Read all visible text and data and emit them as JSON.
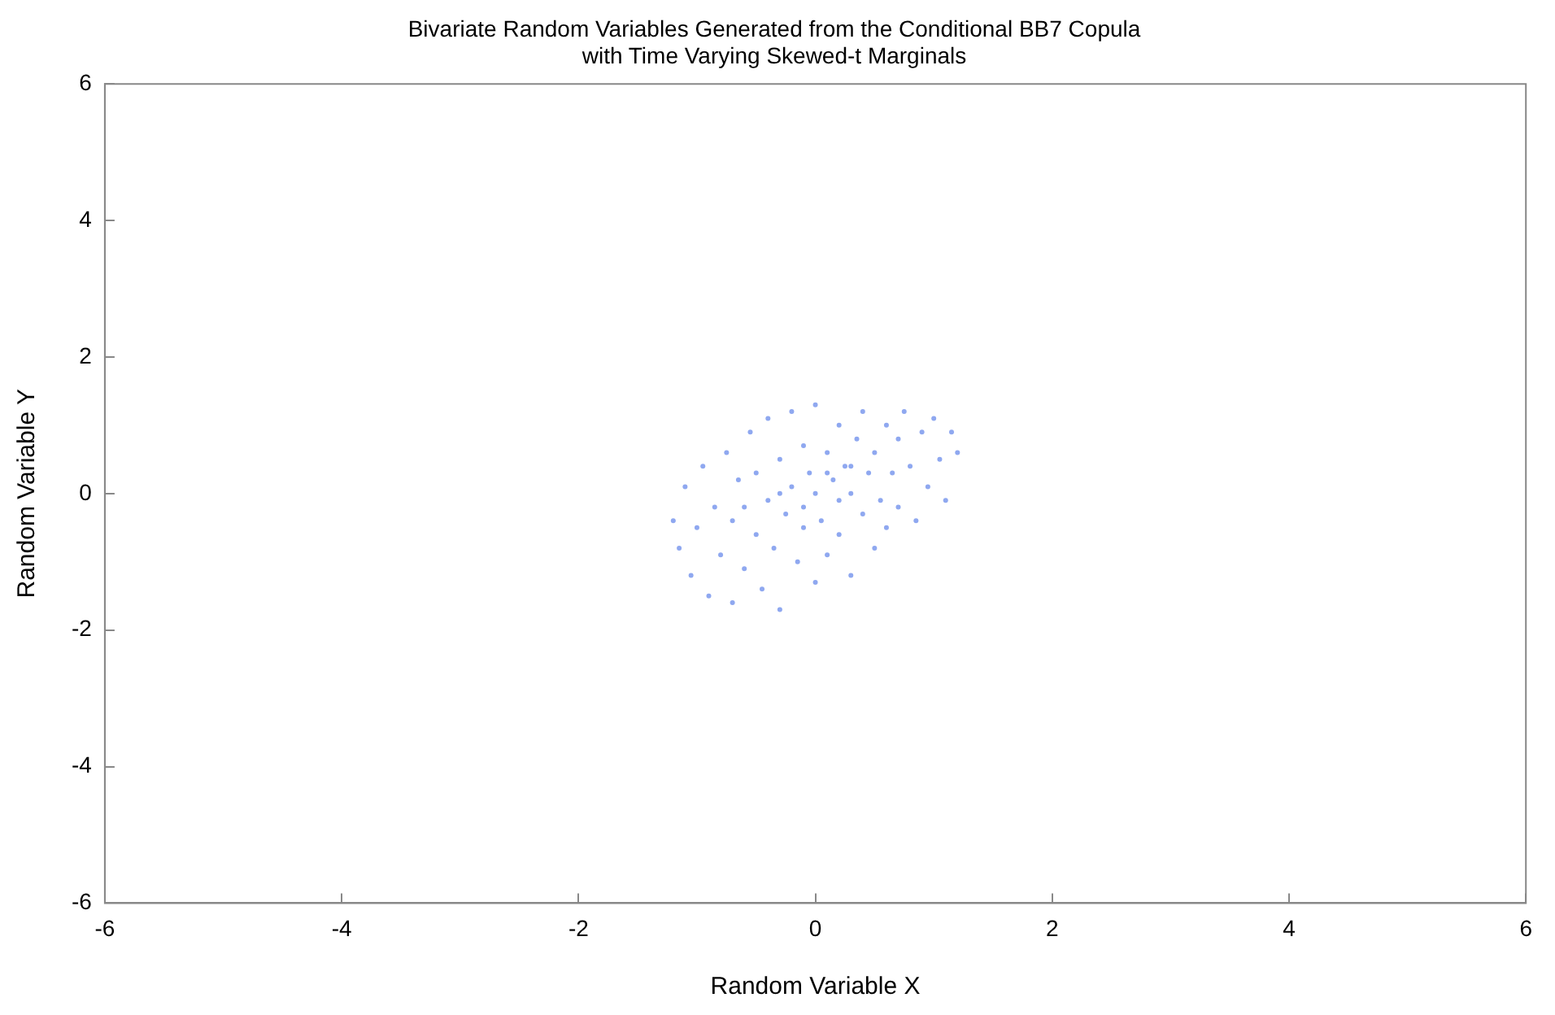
{
  "chart_data": {
    "type": "scatter",
    "title": [
      "Bivariate Random Variables Generated from the Conditional BB7 Copula",
      "with Time Varying Skewed-t Marginals"
    ],
    "xlabel": "Random Variable X",
    "ylabel": "Random Variable Y",
    "xlim": [
      -6,
      6
    ],
    "ylim": [
      -6,
      6
    ],
    "xticks": [
      -6,
      -4,
      -2,
      0,
      2,
      4,
      6
    ],
    "yticks": [
      -6,
      -4,
      -2,
      0,
      2,
      4,
      6
    ],
    "marker": "circle",
    "grid": false,
    "legend": false,
    "series": [
      {
        "color": "#8fa8f0",
        "x": [
          -1.2,
          -1.15,
          -1.1,
          -1.05,
          -1.0,
          -0.95,
          -0.9,
          -0.85,
          -0.8,
          -0.75,
          -0.7,
          -0.7,
          -0.65,
          -0.6,
          -0.55,
          -0.5,
          -0.5,
          -0.45,
          -0.4,
          -0.4,
          -0.35,
          -0.3,
          -0.3,
          -0.25,
          -0.2,
          -0.2,
          -0.15,
          -0.1,
          -0.1,
          -0.05,
          0.0,
          0.0,
          0.0,
          0.05,
          0.1,
          0.1,
          0.15,
          0.2,
          0.2,
          0.25,
          0.3,
          0.3,
          0.35,
          0.4,
          0.4,
          0.45,
          0.5,
          0.5,
          0.55,
          0.6,
          0.6,
          0.65,
          0.7,
          0.7,
          0.75,
          0.8,
          0.85,
          0.9,
          0.95,
          1.0,
          1.05,
          1.1,
          1.15,
          1.2,
          -0.6,
          -0.3,
          0.1,
          0.3,
          -0.1,
          0.2
        ],
        "values": [
          -0.4,
          -0.8,
          0.1,
          -1.2,
          -0.5,
          0.4,
          -1.5,
          -0.2,
          -0.9,
          0.6,
          -1.6,
          -0.4,
          0.2,
          -1.1,
          0.9,
          -0.6,
          0.3,
          -1.4,
          -0.1,
          1.1,
          -0.8,
          0.5,
          -1.7,
          -0.3,
          0.1,
          1.2,
          -1.0,
          0.7,
          -0.5,
          0.3,
          -1.3,
          0.0,
          1.3,
          -0.4,
          0.6,
          -0.9,
          0.2,
          1.0,
          -0.6,
          0.4,
          -1.2,
          0.0,
          0.8,
          -0.3,
          1.2,
          0.3,
          -0.8,
          0.6,
          -0.1,
          1.0,
          -0.5,
          0.3,
          0.8,
          -0.2,
          1.2,
          0.4,
          -0.4,
          0.9,
          0.1,
          1.1,
          0.5,
          -0.1,
          0.9,
          0.6,
          -0.2,
          0.0,
          0.3,
          0.4,
          -0.2,
          -0.1
        ]
      }
    ]
  }
}
